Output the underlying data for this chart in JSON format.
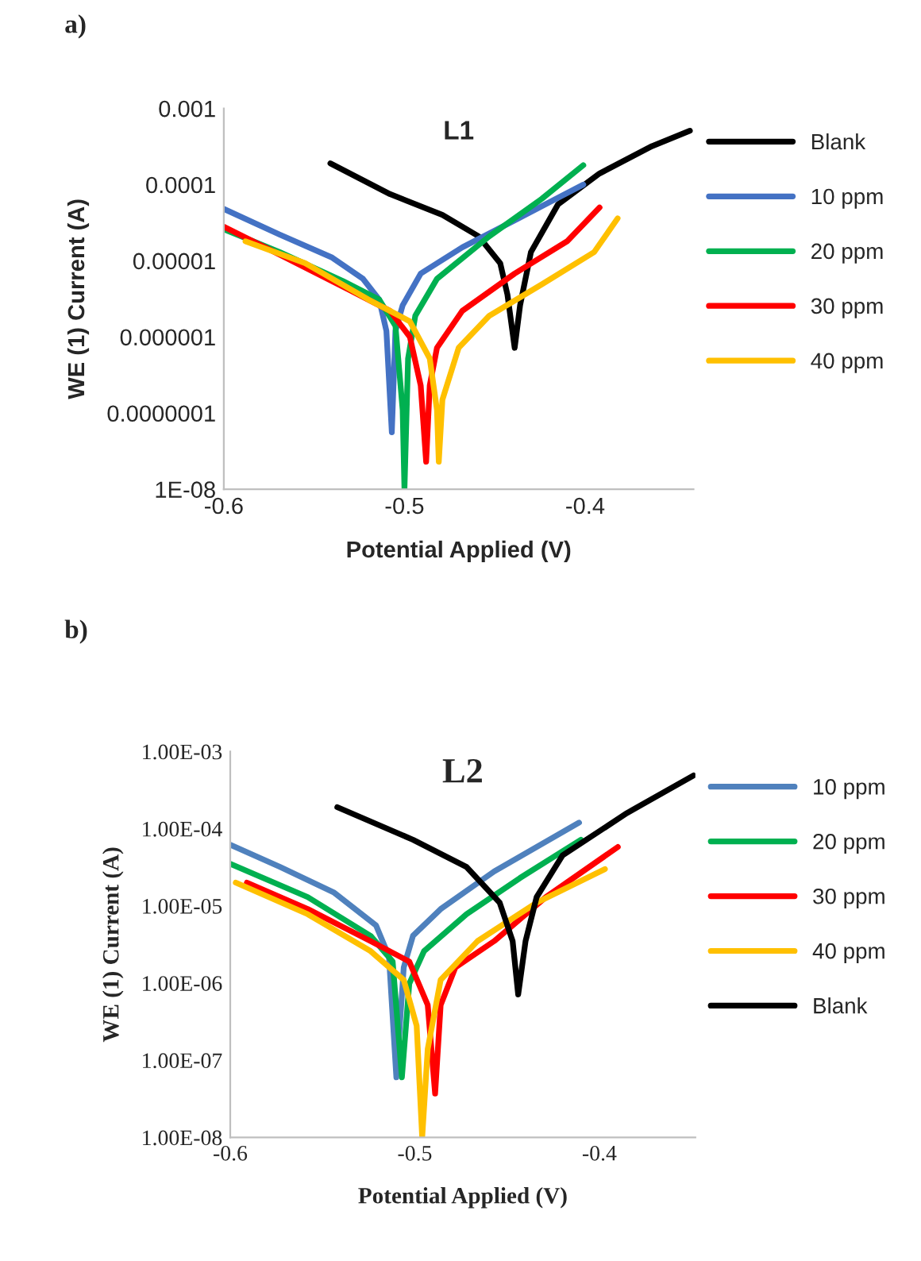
{
  "chart_data": [
    {
      "type": "line",
      "title": "L1",
      "xlabel": "Potential Applied (V)",
      "ylabel": "WE (1) Current (A)",
      "annotations": [
        "a)"
      ],
      "log": "y",
      "xlim": [
        -0.6,
        -0.34
      ],
      "xticks": [
        -0.6,
        -0.5,
        -0.4
      ],
      "ylim": [
        1e-08,
        0.001
      ],
      "yticks": [
        {
          "value": 1e-08,
          "label": "1E-08"
        },
        {
          "value": 1e-07,
          "label": "0.0000001"
        },
        {
          "value": 1e-06,
          "label": "0.000001"
        },
        {
          "value": 1e-05,
          "label": "0.00001"
        },
        {
          "value": 0.0001,
          "label": "0.0001"
        },
        {
          "value": 0.001,
          "label": "0.001"
        }
      ],
      "grid": false,
      "legend": "right",
      "marker": "none",
      "line_style": "solid",
      "series": [
        {
          "name": "Blank",
          "color": "#000000",
          "x": [
            -0.541,
            -0.508,
            -0.479,
            -0.459,
            -0.447,
            -0.443,
            -0.439,
            -0.436,
            -0.43,
            -0.415,
            -0.392,
            -0.363,
            -0.342
          ],
          "values": [
            0.00019,
            7.5e-05,
            4e-05,
            2.1e-05,
            9.3e-06,
            3.6e-06,
            7.2e-07,
            2.6e-06,
            1.3e-05,
            5.5e-05,
            0.00014,
            0.00032,
            0.00051
          ]
        },
        {
          "name": "10 ppm",
          "color": "#4472c4",
          "x": [
            -0.6,
            -0.569,
            -0.54,
            -0.523,
            -0.514,
            -0.51,
            -0.507,
            -0.505,
            -0.501,
            -0.491,
            -0.468,
            -0.439,
            -0.401
          ],
          "values": [
            4.8e-05,
            2.2e-05,
            1.1e-05,
            5.8e-06,
            3.1e-06,
            1.2e-06,
            5.6e-08,
            1.2e-06,
            2.6e-06,
            6.8e-06,
            1.5e-05,
            3.4e-05,
            0.0001
          ]
        },
        {
          "name": "20 ppm",
          "color": "#00b050",
          "x": [
            -0.6,
            -0.569,
            -0.534,
            -0.514,
            -0.505,
            -0.501,
            -0.5,
            -0.498,
            -0.494,
            -0.482,
            -0.453,
            -0.424,
            -0.401
          ],
          "values": [
            2.6e-05,
            1.3e-05,
            5.4e-06,
            3.1e-06,
            1.4e-06,
            1.1e-07,
            1e-08,
            5.2e-07,
            1.9e-06,
            5.8e-06,
            2.1e-05,
            6.5e-05,
            0.00018
          ]
        },
        {
          "name": "30 ppm",
          "color": "#ff0000",
          "x": [
            -0.6,
            -0.569,
            -0.531,
            -0.508,
            -0.497,
            -0.491,
            -0.488,
            -0.486,
            -0.482,
            -0.468,
            -0.439,
            -0.41,
            -0.392
          ],
          "values": [
            2.8e-05,
            1.2e-05,
            4.2e-06,
            2.2e-06,
            1e-06,
            2.3e-07,
            2.3e-08,
            2.3e-07,
            7.2e-07,
            2.2e-06,
            6.8e-06,
            1.8e-05,
            5e-05
          ]
        },
        {
          "name": "40 ppm",
          "color": "#ffc000",
          "x": [
            -0.588,
            -0.555,
            -0.52,
            -0.497,
            -0.486,
            -0.482,
            -0.481,
            -0.479,
            -0.47,
            -0.453,
            -0.424,
            -0.395,
            -0.382
          ],
          "values": [
            1.8e-05,
            9.3e-06,
            3.1e-06,
            1.6e-06,
            5.2e-07,
            1.1e-07,
            2.3e-08,
            1.5e-07,
            7.2e-07,
            1.9e-06,
            4.9e-06,
            1.3e-05,
            3.6e-05
          ]
        }
      ]
    },
    {
      "type": "line",
      "title": "L2",
      "xlabel": "Potential Applied (V)",
      "ylabel": "WE (1) Current (A)",
      "annotations": [
        "b)"
      ],
      "log": "y",
      "xlim": [
        -0.6,
        -0.348
      ],
      "xticks": [
        -0.6,
        -0.5,
        -0.4
      ],
      "ylim": [
        1e-08,
        0.001
      ],
      "yticks": [
        {
          "value": 1e-08,
          "label": "1.00E-08"
        },
        {
          "value": 1e-07,
          "label": "1.00E-07"
        },
        {
          "value": 1e-06,
          "label": "1.00E-06"
        },
        {
          "value": 1e-05,
          "label": "1.00E-05"
        },
        {
          "value": 0.0001,
          "label": "1.00E-04"
        },
        {
          "value": 0.001,
          "label": "1.00E-03"
        }
      ],
      "grid": false,
      "legend": "right",
      "marker": "none",
      "line_style": "solid",
      "series": [
        {
          "name": "10 ppm",
          "color": "#4f81bd",
          "x": [
            -0.6,
            -0.573,
            -0.544,
            -0.521,
            -0.514,
            -0.51,
            -0.506,
            -0.501,
            -0.486,
            -0.457,
            -0.411
          ],
          "values": [
            6.2e-05,
            3.2e-05,
            1.5e-05,
            5.6e-06,
            2.2e-06,
            6e-08,
            1.6e-06,
            4.1e-06,
            9.1e-06,
            2.8e-05,
            0.00012
          ]
        },
        {
          "name": "20 ppm",
          "color": "#00b050",
          "x": [
            -0.6,
            -0.558,
            -0.524,
            -0.512,
            -0.507,
            -0.503,
            -0.495,
            -0.472,
            -0.443,
            -0.41
          ],
          "values": [
            3.5e-05,
            1.3e-05,
            4.1e-06,
            1.9e-06,
            6e-08,
            9.8e-07,
            2.6e-06,
            7.8e-06,
            2.3e-05,
            7.2e-05
          ]
        },
        {
          "name": "30 ppm",
          "color": "#ff0000",
          "x": [
            -0.591,
            -0.558,
            -0.524,
            -0.503,
            -0.493,
            -0.489,
            -0.486,
            -0.478,
            -0.457,
            -0.429,
            -0.39
          ],
          "values": [
            2e-05,
            9.1e-06,
            3.5e-06,
            1.9e-06,
            5.2e-07,
            3.7e-08,
            5.2e-07,
            1.6e-06,
            3.5e-06,
            1.3e-05,
            5.8e-05
          ]
        },
        {
          "name": "40 ppm",
          "color": "#ffc000",
          "x": [
            -0.597,
            -0.558,
            -0.524,
            -0.506,
            -0.499,
            -0.496,
            -0.493,
            -0.486,
            -0.466,
            -0.434,
            -0.397
          ],
          "values": [
            2e-05,
            7.8e-06,
            2.6e-06,
            1.1e-06,
            2.8e-07,
            1e-08,
            1.4e-07,
            1.1e-06,
            3.5e-06,
            1.1e-05,
            3e-05
          ]
        },
        {
          "name": "Blank",
          "color": "#000000",
          "x": [
            -0.542,
            -0.501,
            -0.472,
            -0.454,
            -0.447,
            -0.444,
            -0.44,
            -0.434,
            -0.42,
            -0.385,
            -0.349
          ],
          "values": [
            0.00019,
            7.2e-05,
            3.2e-05,
            1.1e-05,
            3.5e-06,
            7.1e-07,
            3.5e-06,
            1.3e-05,
            4.5e-05,
            0.00016,
            0.00049
          ]
        }
      ]
    }
  ]
}
